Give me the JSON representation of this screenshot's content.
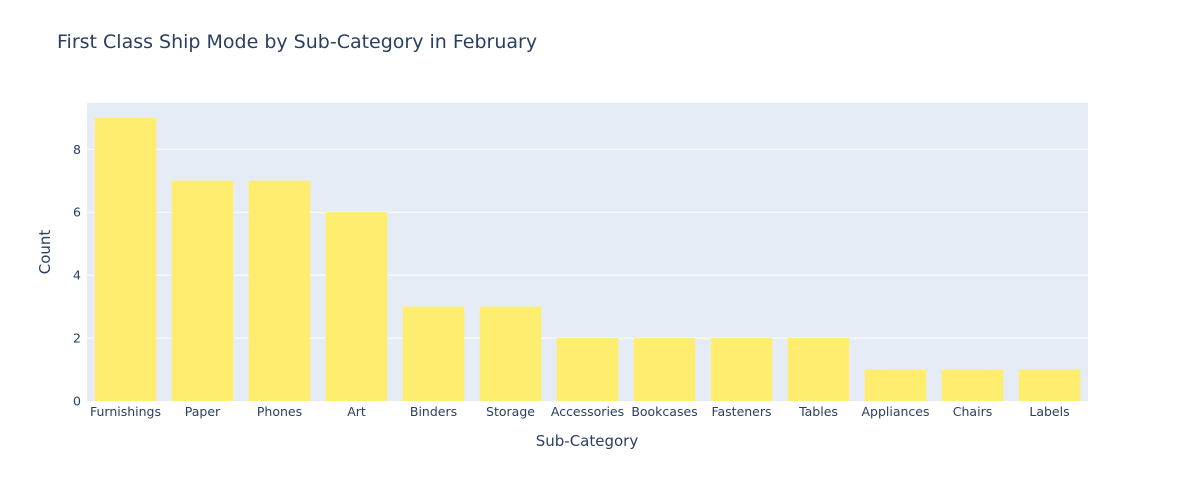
{
  "chart_data": {
    "type": "bar",
    "title": "First Class Ship Mode by Sub-Category in February",
    "xlabel": "Sub-Category",
    "ylabel": "Count",
    "categories": [
      "Furnishings",
      "Paper",
      "Phones",
      "Art",
      "Binders",
      "Storage",
      "Accessories",
      "Bookcases",
      "Fasteners",
      "Tables",
      "Appliances",
      "Chairs",
      "Labels"
    ],
    "values": [
      9,
      7,
      7,
      6,
      3,
      3,
      2,
      2,
      2,
      2,
      1,
      1,
      1
    ],
    "ylim": [
      0,
      9.47
    ],
    "yticks": [
      0,
      2,
      4,
      6,
      8
    ],
    "grid": true,
    "colors": {
      "bar": "#FFED6F",
      "plot_bg": "#E5ECF6",
      "grid": "#ffffff",
      "text": "#2a3f5f"
    }
  }
}
